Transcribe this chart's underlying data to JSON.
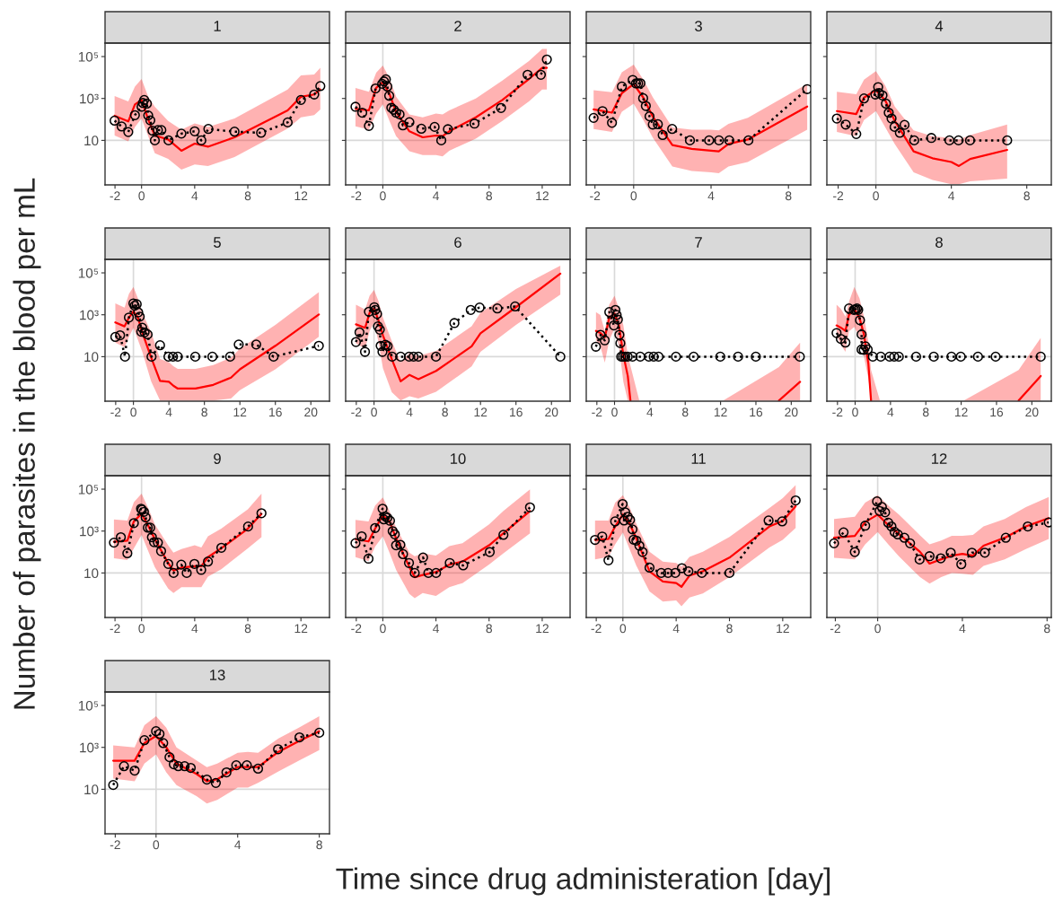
{
  "chart_data": [
    {
      "type": "line",
      "title": "1",
      "ylabel": "Number of parasites in the blood per mL",
      "log": "y",
      "xlim": [
        -2.75,
        14.15
      ],
      "xticks": [
        -2,
        0,
        4,
        8,
        12
      ],
      "ylim": [
        0.075,
        440000
      ],
      "yticks": [
        10,
        {
          "value": 1000,
          "label": "10³"
        },
        {
          "value": 100000,
          "label": "10⁵"
        }
      ],
      "ref_lines": [
        {
          "axis": "x",
          "value": 0,
          "color": "#d9d9d9"
        },
        {
          "axis": "y",
          "value": 10,
          "color": "#d9d9d9"
        }
      ],
      "series": [
        {
          "type": "line",
          "color": "#ff0000",
          "line_style": "solid",
          "marker": "none",
          "x": [
            -2.03,
            -1.0,
            -0.5,
            0,
            0.5,
            1.0,
            2.0,
            3.0,
            4.0,
            5.0,
            7.0,
            11.0,
            12.0,
            13.0,
            13.46
          ],
          "values": [
            150,
            80,
            520,
            850,
            100,
            17,
            11,
            3.2,
            7,
            5,
            14,
            270,
            1200,
            1550,
            2700
          ],
          "lower": [
            17,
            9,
            44,
            110,
            16,
            2.4,
            1.3,
            0.4,
            0.7,
            0.6,
            1.6,
            37,
            125,
            160,
            300
          ],
          "upper": [
            1300,
            720,
            3700,
            8500,
            1200,
            400,
            85,
            32,
            65,
            44,
            110,
            2700,
            12600,
            14000,
            29000
          ]
        },
        {
          "type": "line",
          "color": "#000000",
          "line_style": "dotted",
          "marker": "circle",
          "x": [
            -2.03,
            -1.5,
            -1.0,
            -0.5,
            0,
            0.1,
            0.2,
            0.4,
            0.5,
            0.66,
            0.82,
            1.0,
            1.23,
            1.49,
            2.03,
            3.0,
            4.0,
            4.5,
            5.03,
            7.0,
            9.0,
            11.0,
            12.0,
            13.0,
            13.46
          ],
          "values": [
            87,
            46,
            25,
            160,
            400,
            610,
            850,
            570,
            155,
            90,
            29,
            10,
            31,
            31,
            10,
            21,
            27,
            10,
            35,
            26,
            23,
            72,
            850,
            1550,
            3900
          ]
        }
      ]
    },
    {
      "type": "line",
      "title": "2",
      "log": "y",
      "tick_labels": "x",
      "xlim": [
        -2.8,
        14.1
      ],
      "xticks": [
        -2,
        0,
        4,
        8,
        12
      ],
      "ylim": [
        0.075,
        440000
      ],
      "yticks": [
        {
          "value": 10,
          "label": null
        },
        {
          "value": 1000,
          "label": null
        },
        {
          "value": 100000,
          "label": null
        }
      ],
      "ref_lines": [
        {
          "axis": "x",
          "value": 0,
          "color": "#d9d9d9"
        },
        {
          "axis": "y",
          "value": 10,
          "color": "#d9d9d9"
        }
      ],
      "series": [
        {
          "type": "line",
          "color": "#ff0000",
          "line_style": "solid",
          "marker": "none",
          "x": [
            -2.06,
            -1.05,
            -0.5,
            0,
            0.5,
            1.0,
            2.0,
            3.0,
            4.0,
            4.5,
            5.0,
            7.0,
            9.0,
            11.0,
            12.0,
            12.35
          ],
          "values": [
            320,
            270,
            3200,
            6100,
            1600,
            230,
            27,
            14,
            17,
            16,
            27,
            125,
            850,
            8500,
            29000,
            29000
          ],
          "lower": [
            47,
            32,
            190,
            520,
            85,
            16,
            3,
            2,
            2,
            1.7,
            3.2,
            12,
            85,
            720,
            2700,
            2700
          ],
          "upper": [
            3200,
            2100,
            17000,
            37000,
            9100,
            1200,
            175,
            125,
            190,
            175,
            270,
            1000,
            7200,
            61000,
            230000,
            230000
          ]
        },
        {
          "type": "line",
          "color": "#000000",
          "line_style": "dotted",
          "marker": "circle",
          "x": [
            -2.06,
            -1.55,
            -1.05,
            -0.55,
            -0.05,
            0.09,
            0.23,
            0.34,
            0.48,
            0.64,
            0.82,
            1.0,
            1.26,
            1.51,
            2.0,
            2.9,
            3.9,
            4.4,
            4.9,
            6.9,
            8.9,
            10.9,
            11.9,
            12.35
          ],
          "values": [
            400,
            210,
            49,
            3000,
            5000,
            6500,
            8200,
            3700,
            1350,
            360,
            290,
            210,
            175,
            52,
            74,
            36,
            44,
            10,
            34,
            63,
            350,
            13500,
            13500,
            72000
          ]
        }
      ]
    },
    {
      "type": "line",
      "title": "3",
      "log": "y",
      "tick_labels": "x",
      "xlim": [
        -2.45,
        9.15
      ],
      "xticks": [
        -2,
        0,
        4,
        8
      ],
      "ylim": [
        0.075,
        440000
      ],
      "yticks": [
        {
          "value": 10,
          "label": null
        },
        {
          "value": 1000,
          "label": null
        },
        {
          "value": 100000,
          "label": null
        }
      ],
      "ref_lines": [
        {
          "axis": "x",
          "value": 0,
          "color": "#d9d9d9"
        },
        {
          "axis": "y",
          "value": 10,
          "color": "#d9d9d9"
        }
      ],
      "series": [
        {
          "type": "line",
          "color": "#ff0000",
          "line_style": "solid",
          "marker": "none",
          "x": [
            -2.07,
            -1.12,
            -0.61,
            0,
            0.5,
            1.0,
            2.0,
            3.0,
            4.0,
            4.4,
            4.9,
            5.9,
            8.97
          ],
          "values": [
            300,
            210,
            1800,
            4900,
            1100,
            130,
            6,
            3.9,
            3.2,
            3,
            6.7,
            11,
            410
          ],
          "lower": [
            35,
            25,
            230,
            570,
            94,
            13,
            0.57,
            0.35,
            0.3,
            0.27,
            0.57,
            0.93,
            32
          ],
          "upper": [
            2500,
            2000,
            18000,
            41000,
            7900,
            1100,
            41,
            32,
            32,
            30,
            61,
            118,
            4900
          ]
        },
        {
          "type": "line",
          "color": "#000000",
          "line_style": "dotted",
          "marker": "circle",
          "x": [
            -2.07,
            -1.61,
            -1.12,
            -0.61,
            -0.05,
            0.12,
            0.23,
            0.35,
            0.49,
            0.63,
            0.82,
            0.99,
            1.25,
            1.5,
            1.99,
            2.91,
            3.9,
            4.41,
            4.94,
            5.93,
            8.97
          ],
          "values": [
            118,
            250,
            69,
            3700,
            7700,
            5200,
            5200,
            5300,
            1030,
            440,
            140,
            57,
            59,
            18,
            35,
            10,
            10,
            10,
            10,
            10,
            2800
          ]
        }
      ]
    },
    {
      "type": "line",
      "title": "4",
      "log": "y",
      "tick_labels": "x",
      "xlim": [
        -2.6,
        9.3
      ],
      "xticks": [
        -2,
        0,
        4,
        8
      ],
      "ylim": [
        0.075,
        440000
      ],
      "yticks": [
        {
          "value": 10,
          "label": null
        },
        {
          "value": 1000,
          "label": null
        },
        {
          "value": 100000,
          "label": null
        }
      ],
      "ref_lines": [
        {
          "axis": "x",
          "value": 0,
          "color": "#d9d9d9"
        },
        {
          "axis": "y",
          "value": 10,
          "color": "#d9d9d9"
        }
      ],
      "series": [
        {
          "type": "line",
          "color": "#ff0000",
          "line_style": "solid",
          "marker": "none",
          "x": [
            -2.07,
            -1.04,
            -0.63,
            0,
            0.5,
            1.0,
            2.0,
            3.0,
            4.0,
            4.4,
            5.0,
            6.96
          ],
          "values": [
            250,
            180,
            1100,
            2500,
            800,
            85,
            3,
            1.4,
            0.93,
            0.6,
            1.3,
            3.5
          ],
          "lower": [
            25,
            16,
            94,
            250,
            41,
            6.7,
            0.3,
            0.13,
            0.08,
            0.08,
            0.11,
            0.15
          ],
          "upper": [
            2100,
            1600,
            7900,
            20000,
            4100,
            410,
            30,
            16,
            13,
            11,
            18,
            57
          ]
        },
        {
          "type": "line",
          "color": "#000000",
          "line_style": "dotted",
          "marker": "circle",
          "x": [
            -2.07,
            -1.6,
            -1.04,
            -0.63,
            -0.03,
            0.12,
            0.17,
            0.35,
            0.53,
            0.68,
            0.83,
            0.99,
            1.27,
            1.52,
            2.03,
            2.94,
            3.9,
            4.38,
            4.99,
            6.96
          ],
          "values": [
            110,
            57,
            20,
            1000,
            1550,
            3500,
            1800,
            1400,
            570,
            210,
            110,
            44,
            23,
            55,
            10,
            13,
            10,
            10,
            10,
            10
          ]
        }
      ]
    },
    {
      "type": "line",
      "title": "5",
      "log": "y",
      "xlim": [
        -3.2,
        22.1
      ],
      "xticks": [
        -2,
        0,
        4,
        8,
        12,
        16,
        20
      ],
      "ylim": [
        0.075,
        440000
      ],
      "yticks": [
        10,
        {
          "value": 1000,
          "label": "10³"
        },
        {
          "value": 100000,
          "label": "10⁵"
        }
      ],
      "ref_lines": [
        {
          "axis": "x",
          "value": 0,
          "color": "#d9d9d9"
        },
        {
          "axis": "y",
          "value": 10,
          "color": "#d9d9d9"
        }
      ],
      "series": [
        {
          "type": "line",
          "color": "#ff0000",
          "line_style": "solid",
          "marker": "none",
          "x": [
            -2.04,
            -1.0,
            -0.5,
            0,
            0.5,
            1.0,
            2.0,
            3.0,
            4.0,
            4.5,
            5.0,
            7.0,
            9.0,
            11.0,
            12.0,
            16.0,
            20.9
          ],
          "values": [
            430,
            280,
            740,
            1400,
            740,
            145,
            9,
            0.7,
            0.63,
            0.41,
            0.3,
            0.3,
            0.45,
            1.0,
            2.5,
            33,
            1030
          ],
          "lower": [
            47,
            28,
            89,
            240,
            65,
            17,
            0.66,
            0.08,
            0.08,
            0.08,
            0.08,
            0.08,
            0.08,
            0.1,
            0.25,
            2.5,
            89
          ],
          "upper": [
            3500,
            2200,
            10000,
            21000,
            6200,
            1230,
            145,
            7.7,
            5.5,
            3.5,
            2.6,
            2.6,
            4,
            9,
            24,
            330,
            12000
          ]
        },
        {
          "type": "line",
          "color": "#000000",
          "line_style": "dotted",
          "marker": "circle",
          "x": [
            -2.04,
            -1.5,
            -0.95,
            -0.51,
            0,
            0.14,
            0.37,
            0.54,
            0.71,
            0.88,
            0.99,
            1.26,
            1.6,
            2.04,
            3.0,
            3.95,
            4.46,
            5.0,
            6.97,
            8.9,
            10.9,
            11.87,
            13.84,
            15.8,
            20.9
          ],
          "values": [
            87,
            105,
            10,
            740,
            3500,
            2700,
            3200,
            1300,
            810,
            155,
            240,
            145,
            115,
            10,
            35,
            10,
            10,
            10,
            10,
            10,
            10,
            38,
            38,
            10,
            33
          ]
        }
      ]
    },
    {
      "type": "line",
      "title": "6",
      "log": "y",
      "tick_labels": "x",
      "xlim": [
        -3.2,
        22.1
      ],
      "xticks": [
        -2,
        0,
        4,
        8,
        12,
        16,
        20
      ],
      "ylim": [
        0.075,
        440000
      ],
      "yticks": [
        {
          "value": 10,
          "label": null
        },
        {
          "value": 1000,
          "label": null
        },
        {
          "value": 100000,
          "label": null
        }
      ],
      "ref_lines": [
        {
          "axis": "x",
          "value": 0,
          "color": "#d9d9d9"
        },
        {
          "axis": "y",
          "value": 10,
          "color": "#d9d9d9"
        }
      ],
      "series": [
        {
          "type": "line",
          "color": "#ff0000",
          "line_style": "solid",
          "marker": "none",
          "x": [
            -2.04,
            -1.0,
            -0.5,
            0,
            0.5,
            1.0,
            2.0,
            3.0,
            4.0,
            5.0,
            7.0,
            11.0,
            12.0,
            16.0,
            21.0
          ],
          "values": [
            350,
            240,
            1230,
            2000,
            540,
            105,
            7.7,
            0.66,
            1.35,
            0.85,
            2.1,
            31,
            130,
            2300,
            91000
          ],
          "lower": [
            44,
            24,
            170,
            420,
            52,
            2.8,
            0.2,
            0.08,
            0.13,
            0.1,
            0.21,
            3.4,
            17,
            330,
            9100
          ],
          "upper": [
            3000,
            1800,
            8100,
            15500,
            4500,
            740,
            55,
            5.5,
            15,
            11,
            19,
            280,
            1230,
            17000,
            220000
          ]
        },
        {
          "type": "line",
          "color": "#000000",
          "line_style": "dotted",
          "marker": "circle",
          "x": [
            -2.04,
            -1.64,
            -1.02,
            -0.58,
            0.03,
            0.14,
            0.34,
            0.44,
            0.65,
            0.75,
            0.95,
            1.29,
            1.53,
            2.04,
            3.0,
            3.95,
            4.46,
            5.0,
            6.98,
            9.06,
            10.9,
            11.9,
            13.9,
            15.9,
            21.0
          ],
          "values": [
            50,
            145,
            17,
            1400,
            2300,
            1700,
            1100,
            280,
            195,
            33,
            17,
            37,
            32,
            10,
            10,
            10,
            10,
            10,
            10,
            400,
            1700,
            2200,
            2000,
            2500,
            10
          ]
        }
      ]
    },
    {
      "type": "line",
      "title": "7",
      "log": "y",
      "tick_labels": "x",
      "xlim": [
        -3.2,
        22.2
      ],
      "xticks": [
        -2,
        0,
        4,
        8,
        12,
        16,
        20
      ],
      "ylim": [
        0.075,
        440000
      ],
      "yticks": [
        {
          "value": 10,
          "label": null
        },
        {
          "value": 1000,
          "label": null
        },
        {
          "value": 100000,
          "label": null
        }
      ],
      "ref_lines": [
        {
          "axis": "x",
          "value": 0,
          "color": "#d9d9d9"
        },
        {
          "axis": "y",
          "value": 10,
          "color": "#d9d9d9"
        }
      ],
      "series": [
        {
          "type": "line",
          "color": "#ff0000",
          "line_style": "solid",
          "marker": "none",
          "x": [
            -2.1,
            -1.6,
            -1.1,
            -0.6,
            0,
            0.5,
            1.0,
            1.5,
            1.8,
            2.8,
            12.3,
            18.6,
            21
          ],
          "values": [
            170,
            135,
            84,
            690,
            1140,
            310,
            12,
            1.2,
            0.08,
            null,
            null,
            0.08,
            0.63
          ],
          "lower": [
            60,
            31,
            5.2,
            60,
            220,
            31,
            0.63,
            0.08,
            0.08,
            0.08,
            0.08,
            0.08,
            0.08
          ],
          "upper": [
            1350,
            980,
            160,
            3000,
            8100,
            1900,
            310,
            12,
            3.7,
            0.08,
            0.08,
            3.2,
            47
          ]
        },
        {
          "type": "line",
          "color": "#000000",
          "line_style": "dotted",
          "marker": "circle",
          "x": [
            -2.11,
            -1.59,
            -1.11,
            -0.59,
            -0.07,
            0.1,
            0.24,
            0.38,
            0.55,
            0.66,
            0.76,
            0.97,
            1.21,
            1.49,
            2.04,
            2.91,
            3.88,
            4.43,
            4.98,
            6.95,
            8.96,
            11.97,
            13.98,
            15.99,
            20.97
          ],
          "values": [
            30,
            110,
            60,
            1350,
            310,
            1700,
            980,
            590,
            110,
            44,
            10,
            10,
            10,
            10,
            10,
            10,
            10,
            10,
            10,
            10,
            10,
            10,
            10,
            10,
            10
          ]
        }
      ]
    },
    {
      "type": "line",
      "title": "8",
      "log": "y",
      "tick_labels": "x",
      "xlim": [
        -3.2,
        22.2
      ],
      "xticks": [
        -2,
        0,
        4,
        8,
        12,
        16,
        20
      ],
      "ylim": [
        0.075,
        440000
      ],
      "yticks": [
        {
          "value": 10,
          "label": null
        },
        {
          "value": 1000,
          "label": null
        },
        {
          "value": 100000,
          "label": null
        }
      ],
      "ref_lines": [
        {
          "axis": "x",
          "value": 0,
          "color": "#d9d9d9"
        },
        {
          "axis": "y",
          "value": 10,
          "color": "#d9d9d9"
        }
      ],
      "series": [
        {
          "type": "line",
          "color": "#ff0000",
          "line_style": "solid",
          "marker": "none",
          "x": [
            -2.1,
            -1.6,
            -1.1,
            -0.7,
            -0.1,
            0.5,
            1.0,
            1.5,
            1.8,
            2.8,
            12.3,
            18.5,
            21
          ],
          "values": [
            310,
            240,
            170,
            980,
            1900,
            690,
            115,
            4.5,
            0.08,
            null,
            null,
            0.08,
            1.2
          ],
          "lower": [
            98,
            37,
            17,
            160,
            260,
            84,
            10,
            0.9,
            0.08,
            0.08,
            0.08,
            0.08,
            0.08
          ],
          "upper": [
            3000,
            1900,
            820,
            4200,
            21000,
            6100,
            820,
            51,
            2.3,
            0.08,
            0.08,
            2.3,
            78
          ]
        },
        {
          "type": "line",
          "color": "#000000",
          "line_style": "dotted",
          "marker": "circle",
          "x": [
            -2.1,
            -1.62,
            -1.1,
            -0.69,
            -0.14,
            0.03,
            0.21,
            0.35,
            0.55,
            0.73,
            0.73,
            0.97,
            1.17,
            1.42,
            2.0,
            2.9,
            3.9,
            4.42,
            4.94,
            6.9,
            8.9,
            10.9,
            11.95,
            13.9,
            15.9,
            21.0
          ],
          "values": [
            135,
            71,
            47,
            2000,
            1700,
            1800,
            2000,
            1700,
            550,
            115,
            22,
            21,
            31,
            22,
            10,
            10,
            10,
            10,
            10,
            10,
            10,
            10,
            10,
            10,
            10,
            10
          ]
        }
      ]
    },
    {
      "type": "line",
      "title": "9",
      "log": "y",
      "xlim": [
        -2.75,
        14.15
      ],
      "xticks": [
        -2,
        0,
        4,
        8,
        12
      ],
      "ylim": [
        0.075,
        440000
      ],
      "yticks": [
        10,
        {
          "value": 1000,
          "label": "10³"
        },
        {
          "value": 100000,
          "label": "10⁵"
        }
      ],
      "ref_lines": [
        {
          "axis": "x",
          "value": 0,
          "color": "#d9d9d9"
        },
        {
          "axis": "y",
          "value": 10,
          "color": "#d9d9d9"
        }
      ],
      "series": [
        {
          "type": "line",
          "color": "#ff0000",
          "line_style": "solid",
          "marker": "none",
          "x": [
            -2.08,
            -1.07,
            -0.58,
            0,
            0.5,
            1.0,
            2.0,
            2.4,
            3.0,
            4.0,
            4.5,
            5.0,
            6.0,
            8.0,
            9.03
          ],
          "values": [
            310,
            350,
            2900,
            6600,
            1800,
            410,
            30,
            13,
            18,
            21,
            21,
            57,
            150,
            1300,
            6600
          ],
          "lower": [
            51,
            41,
            150,
            660,
            110,
            19,
            1.8,
            1.1,
            2.1,
            2.1,
            2.1,
            6.7,
            15,
            150,
            510
          ],
          "upper": [
            3600,
            3200,
            24000,
            61000,
            12600,
            2100,
            210,
            93,
            138,
            210,
            166,
            560,
            1300,
            10800,
            61000
          ]
        },
        {
          "type": "line",
          "color": "#000000",
          "line_style": "dotted",
          "marker": "circle",
          "x": [
            -2.08,
            -1.56,
            -1.07,
            -0.58,
            -0.04,
            0.04,
            0.18,
            0.31,
            0.47,
            0.65,
            0.78,
            0.94,
            1.23,
            1.47,
            2.01,
            2.41,
            2.99,
            3.4,
            3.98,
            4.49,
            5.0,
            6.01,
            8.02,
            9.03
          ],
          "values": [
            280,
            510,
            87,
            2400,
            11700,
            10400,
            8300,
            4500,
            1450,
            1450,
            510,
            295,
            280,
            110,
            27,
            10,
            25,
            10,
            27,
            14,
            35,
            160,
            1650,
            7100
          ]
        }
      ]
    },
    {
      "type": "line",
      "title": "10",
      "log": "y",
      "tick_labels": "x",
      "xlim": [
        -2.8,
        14.1
      ],
      "xticks": [
        -2,
        0,
        4,
        8,
        12
      ],
      "ylim": [
        0.075,
        440000
      ],
      "yticks": [
        {
          "value": 10,
          "label": null
        },
        {
          "value": 1000,
          "label": null
        },
        {
          "value": 100000,
          "label": null
        }
      ],
      "ref_lines": [
        {
          "axis": "x",
          "value": 0,
          "color": "#d9d9d9"
        },
        {
          "axis": "y",
          "value": 10,
          "color": "#d9d9d9"
        }
      ],
      "series": [
        {
          "type": "line",
          "color": "#ff0000",
          "line_style": "solid",
          "marker": "none",
          "x": [
            -2.06,
            -1.08,
            -0.58,
            0,
            0.5,
            1.0,
            2.0,
            2.4,
            3.0,
            4.0,
            5.0,
            6.0,
            8.0,
            9.08,
            11.08
          ],
          "values": [
            410,
            320,
            1300,
            5600,
            2900,
            450,
            19,
            6.3,
            8,
            11,
            25,
            35,
            210,
            780,
            9100
          ],
          "lower": [
            57,
            37,
            180,
            560,
            93,
            14,
            1.0,
            0.63,
            1.1,
            0.8,
            2.1,
            3.3,
            25,
            87,
            780
          ],
          "upper": [
            3400,
            2900,
            16600,
            40000,
            9100,
            1500,
            93,
            63,
            87,
            67,
            190,
            265,
            2100,
            9100,
            98000
          ]
        },
        {
          "type": "line",
          "color": "#000000",
          "line_style": "dotted",
          "marker": "circle",
          "x": [
            -2.06,
            -1.59,
            -1.08,
            -0.58,
            -0.02,
            0.07,
            0.18,
            0.34,
            0.54,
            0.74,
            0.9,
            1.0,
            1.32,
            1.52,
            1.97,
            2.4,
            3.03,
            3.43,
            4.01,
            5.04,
            6.05,
            8.05,
            9.08,
            11.08
          ],
          "values": [
            265,
            560,
            48,
            1400,
            11700,
            3600,
            5000,
            4300,
            3100,
            990,
            700,
            210,
            220,
            79,
            30,
            10,
            55,
            10,
            10,
            30,
            23,
            100,
            660,
            13500
          ]
        }
      ]
    },
    {
      "type": "line",
      "title": "11",
      "log": "y",
      "tick_labels": "x",
      "xlim": [
        -2.75,
        14.1
      ],
      "xticks": [
        -2,
        0,
        4,
        8,
        12
      ],
      "ylim": [
        0.075,
        440000
      ],
      "yticks": [
        {
          "value": 10,
          "label": null
        },
        {
          "value": 1000,
          "label": null
        },
        {
          "value": 100000,
          "label": null
        }
      ],
      "ref_lines": [
        {
          "axis": "x",
          "value": 0,
          "color": "#d9d9d9"
        },
        {
          "axis": "y",
          "value": 10,
          "color": "#d9d9d9"
        }
      ],
      "series": [
        {
          "type": "line",
          "color": "#ff0000",
          "line_style": "solid",
          "marker": "none",
          "x": [
            -2.09,
            -1.08,
            -0.58,
            0,
            0.5,
            1.0,
            2.0,
            3.0,
            4.0,
            4.4,
            5.0,
            6.0,
            8.0,
            11.0,
            12.0,
            12.97
          ],
          "values": [
            380,
            420,
            1660,
            6200,
            2300,
            450,
            12,
            3.9,
            3.3,
            2.2,
            7.5,
            12,
            54,
            1660,
            3000,
            15500
          ],
          "lower": [
            45,
            59,
            230,
            860,
            140,
            23,
            1.3,
            0.43,
            0.49,
            0.26,
            0.68,
            1.05,
            6.3,
            166,
            380,
            1400
          ],
          "upper": [
            3200,
            3200,
            23000,
            52000,
            14000,
            2300,
            102,
            35,
            30,
            20,
            59,
            102,
            520,
            12600,
            37000,
            155000
          ]
        },
        {
          "type": "line",
          "color": "#000000",
          "line_style": "dotted",
          "marker": "circle",
          "x": [
            -2.09,
            -1.55,
            -1.08,
            -0.58,
            -0.02,
            0.09,
            0.18,
            0.36,
            0.54,
            0.72,
            0.81,
            1.01,
            1.24,
            1.48,
            2.0,
            2.88,
            3.39,
            3.93,
            4.43,
            4.92,
            5.93,
            8.0,
            10.94,
            11.96,
            12.97
          ],
          "values": [
            380,
            550,
            40,
            2900,
            19500,
            3200,
            7800,
            4800,
            3400,
            1200,
            390,
            350,
            200,
            100,
            18,
            10,
            10,
            10,
            17,
            12,
            10,
            10,
            3200,
            2900,
            29000
          ]
        }
      ]
    },
    {
      "type": "line",
      "title": "12",
      "log": "y",
      "tick_labels": "x",
      "xlim": [
        -2.4,
        8.2
      ],
      "xticks": [
        -2,
        0,
        4,
        8
      ],
      "ylim": [
        0.075,
        440000
      ],
      "yticks": [
        {
          "value": 10,
          "label": null
        },
        {
          "value": 1000,
          "label": null
        },
        {
          "value": 100000,
          "label": null
        }
      ],
      "ref_lines": [
        {
          "axis": "x",
          "value": 0,
          "color": "#d9d9d9"
        },
        {
          "axis": "y",
          "value": 10,
          "color": "#d9d9d9"
        }
      ],
      "series": [
        {
          "type": "line",
          "color": "#ff0000",
          "line_style": "solid",
          "marker": "none",
          "x": [
            -2.06,
            -1.08,
            -0.59,
            0,
            0.5,
            1.0,
            2.0,
            2.45,
            3.0,
            3.5,
            4.0,
            4.5,
            5.0,
            6.0,
            7.0,
            8.08
          ],
          "values": [
            480,
            590,
            2700,
            6100,
            1950,
            730,
            102,
            28,
            45,
            67,
            82,
            67,
            200,
            480,
            1660,
            4100
          ],
          "lower": [
            53,
            45,
            230,
            910,
            230,
            63,
            6.3,
            3.1,
            6.3,
            10,
            9.3,
            8.2,
            22,
            45,
            140,
            420
          ],
          "upper": [
            3800,
            4800,
            23000,
            52000,
            16600,
            6200,
            620,
            230,
            350,
            590,
            590,
            660,
            1660,
            3800,
            14000,
            42000
          ]
        },
        {
          "type": "line",
          "color": "#000000",
          "line_style": "dotted",
          "marker": "circle",
          "x": [
            -2.06,
            -1.61,
            -1.08,
            -0.59,
            -0.03,
            0.09,
            0.2,
            0.35,
            0.5,
            0.65,
            0.8,
            0.95,
            1.26,
            1.53,
            1.98,
            2.45,
            2.98,
            3.45,
            3.95,
            4.45,
            5.06,
            6.05,
            7.09,
            8.08
          ],
          "values": [
            260,
            870,
            100,
            1800,
            26000,
            9100,
            14000,
            7800,
            2500,
            1660,
            910,
            690,
            480,
            260,
            44,
            63,
            50,
            93,
            26,
            93,
            93,
            480,
            1660,
            2600
          ]
        }
      ]
    },
    {
      "type": "line",
      "title": "13",
      "xlabel": "Time since drug administeration [day]",
      "log": "y",
      "xlim": [
        -2.5,
        8.5
      ],
      "xticks": [
        -2,
        0,
        4,
        8
      ],
      "ylim": [
        0.075,
        440000
      ],
      "yticks": [
        10,
        {
          "value": 1000,
          "label": "10³"
        },
        {
          "value": 100000,
          "label": "10⁵"
        }
      ],
      "ref_lines": [
        {
          "axis": "x",
          "value": 0,
          "color": "#d9d9d9"
        },
        {
          "axis": "y",
          "value": 10,
          "color": "#d9d9d9"
        }
      ],
      "series": [
        {
          "type": "line",
          "color": "#ff0000",
          "line_style": "solid",
          "marker": "none",
          "x": [
            -2.1,
            -1.05,
            -0.57,
            0,
            0.5,
            1.0,
            2.0,
            2.49,
            3.0,
            4.0,
            4.5,
            5.0,
            6.0,
            7.0,
            8.0
          ],
          "values": [
            230,
            230,
            1600,
            3500,
            1000,
            170,
            53,
            24,
            30,
            115,
            115,
            115,
            610,
            2000,
            5900
          ],
          "lower": [
            32,
            24,
            170,
            460,
            65,
            16,
            4.6,
            2.1,
            3.1,
            12,
            12,
            20,
            71,
            230,
            740
          ],
          "upper": [
            1230,
            1000,
            11500,
            31000,
            8700,
            1000,
            230,
            115,
            170,
            550,
            610,
            550,
            2700,
            8700,
            31000
          ]
        },
        {
          "type": "line",
          "color": "#000000",
          "line_style": "dotted",
          "marker": "circle",
          "x": [
            -2.1,
            -1.57,
            -1.05,
            -0.57,
            0,
            0.17,
            0.35,
            0.66,
            0.87,
            1.09,
            1.4,
            1.7,
            2.49,
            2.93,
            3.45,
            3.93,
            4.45,
            5.0,
            5.98,
            7.03,
            8.0
          ],
          "values": [
            16,
            126,
            78,
            2200,
            5900,
            4400,
            1600,
            340,
            155,
            126,
            126,
            105,
            29,
            20,
            64,
            140,
            140,
            96,
            810,
            3000,
            5000
          ]
        }
      ]
    }
  ]
}
